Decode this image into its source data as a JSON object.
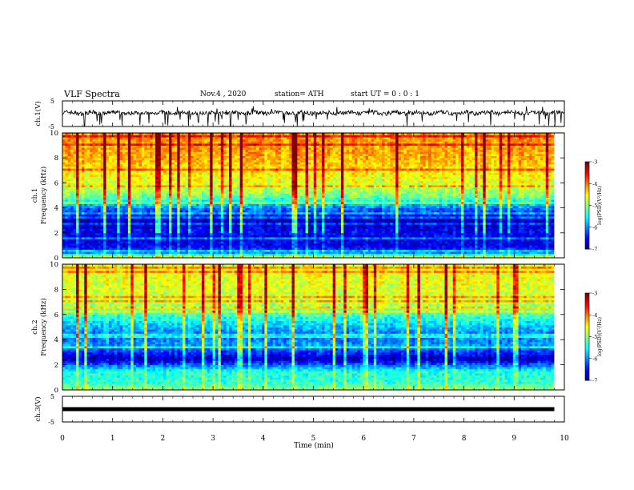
{
  "header": {
    "title": "VLF Spectra",
    "date": "Nov.4  , 2020",
    "station": "station= ATH",
    "start": "start  UT =   0 : 0  : 1"
  },
  "chart_data": [
    {
      "type": "line",
      "name": "ch1-waveform",
      "ylabel": "ch.1(V)",
      "yticks": [
        "5",
        "-5"
      ],
      "ylim": [
        -5,
        5
      ],
      "xlim": [
        0,
        10
      ],
      "note": "noisy waveform centered near 0 V with spikes down to about -5 V"
    },
    {
      "type": "heatmap",
      "name": "ch1-spectrogram",
      "ylabel": "ch.1\nFrequency (kHz)",
      "ylabel_line1": "ch.1",
      "ylabel_line2": "Frequency (kHz)",
      "yticks": [
        "0",
        "2",
        "4",
        "6",
        "8",
        "10"
      ],
      "ylim": [
        0,
        10
      ],
      "xlim": [
        0,
        9.8
      ],
      "bands_khz_to_logpsd": [
        [
          0,
          -4.5
        ],
        [
          0.5,
          -6.2
        ],
        [
          1,
          -6.6
        ],
        [
          2,
          -6.5
        ],
        [
          3,
          -6.8
        ],
        [
          4,
          -6.0
        ],
        [
          5,
          -5.0
        ],
        [
          6,
          -4.6
        ],
        [
          8,
          -4.2
        ],
        [
          10,
          -4.0
        ]
      ],
      "colorbar": {
        "label": "log(PSD)(V²/Hz)",
        "ticks": [
          "-3",
          "-4",
          "-5",
          "-6",
          "-7"
        ],
        "range": [
          -7,
          -3
        ]
      }
    },
    {
      "type": "heatmap",
      "name": "ch2-spectrogram",
      "ylabel": "ch.2\nFrequency (kHz)",
      "ylabel_line1": "ch.2",
      "ylabel_line2": "Frequency (kHz)",
      "yticks": [
        "0",
        "2",
        "4",
        "6",
        "8",
        "10"
      ],
      "ylim": [
        0,
        10
      ],
      "xlim": [
        0,
        9.8
      ],
      "bands_khz_to_logpsd": [
        [
          0,
          -4.8
        ],
        [
          0.5,
          -5.3
        ],
        [
          1.5,
          -5.4
        ],
        [
          2.5,
          -6.8
        ],
        [
          3.5,
          -5.9
        ],
        [
          4.5,
          -6.0
        ],
        [
          5.5,
          -5.5
        ],
        [
          7,
          -4.7
        ],
        [
          10,
          -4.5
        ]
      ],
      "colorbar": {
        "label": "log(PSD)(V²/Hz)",
        "ticks": [
          "-3",
          "-4",
          "-5",
          "-6",
          "-7"
        ],
        "range": [
          -7,
          -3
        ]
      }
    },
    {
      "type": "line",
      "name": "ch3-waveform",
      "ylabel": "ch.3(V)",
      "yticks": [
        "5",
        "-5"
      ],
      "ylim": [
        -5,
        5
      ],
      "xlim": [
        0,
        9.8
      ],
      "values_const": 0,
      "note": "flat thick trace near 0 V"
    }
  ],
  "xaxis": {
    "label": "Time  (min)",
    "ticks": [
      "0",
      "1",
      "2",
      "3",
      "4",
      "5",
      "6",
      "7",
      "8",
      "9",
      "10"
    ],
    "range": [
      0,
      10
    ]
  },
  "colors": {
    "line": "#000000",
    "low": "#000080",
    "mid": "#00ff00",
    "high": "#ff0000"
  }
}
